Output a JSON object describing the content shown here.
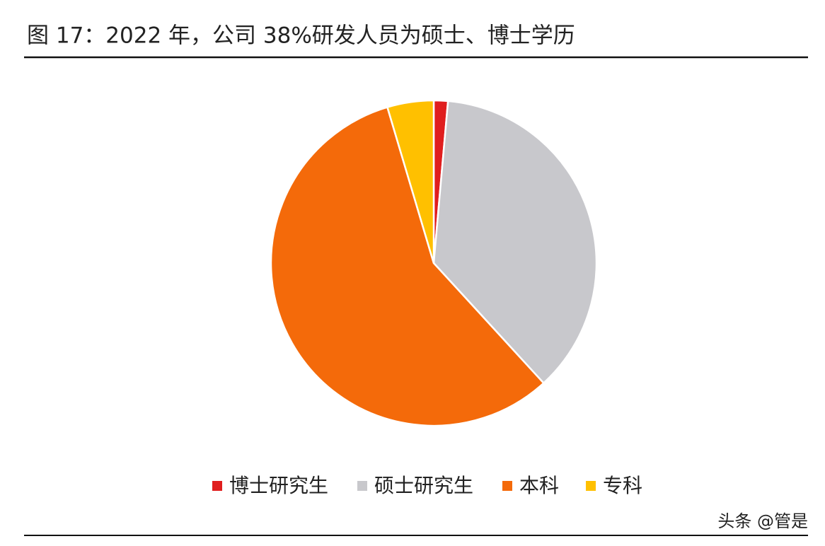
{
  "chart_data": {
    "type": "pie",
    "title": "图 17：2022 年，公司 38%研发人员为硕士、博士学历",
    "categories": [
      "博士研究生",
      "硕士研究生",
      "本科",
      "专科"
    ],
    "values": [
      1.4,
      36.8,
      57.2,
      4.6
    ],
    "colors": [
      "#e01e1e",
      "#c8c8cc",
      "#f46a0a",
      "#ffc000"
    ],
    "legend": "bottom",
    "watermark": "头条 @管是"
  }
}
